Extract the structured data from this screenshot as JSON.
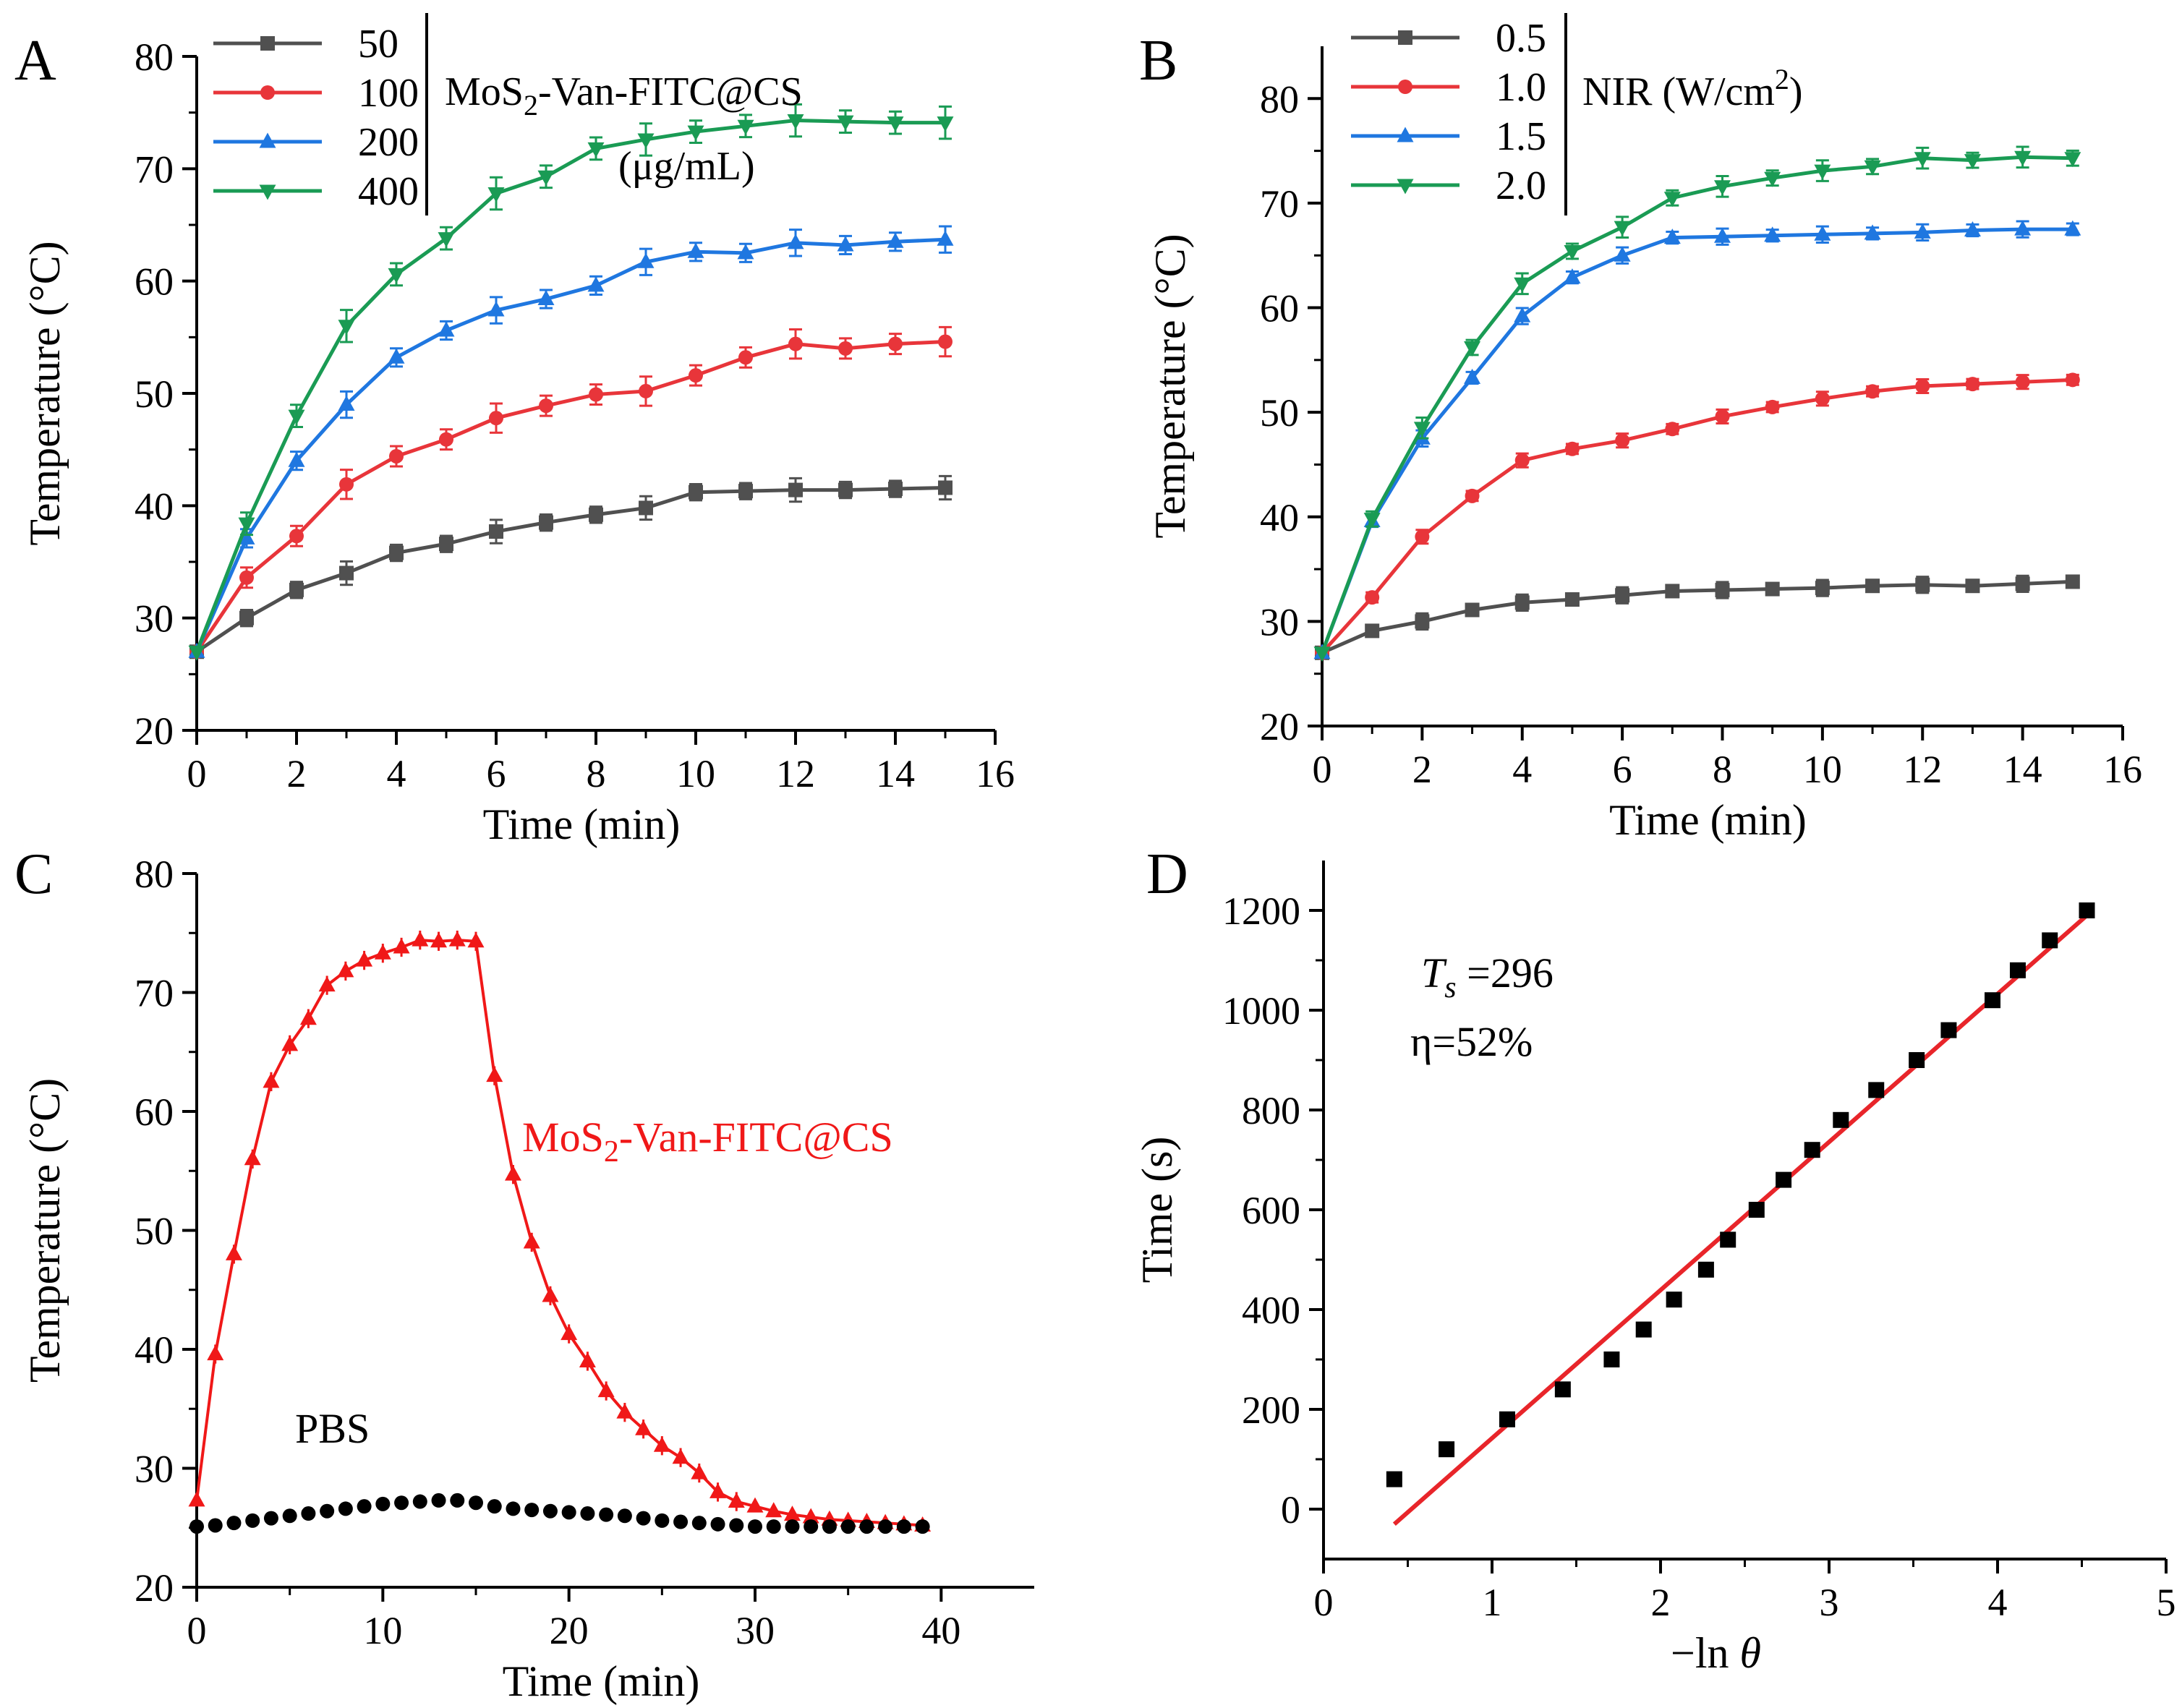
{
  "chart_data": [
    {
      "panel": "A",
      "type": "line",
      "xlabel": "Time (min)",
      "ylabel": "Temperature (°C)",
      "xlim": [
        0,
        16
      ],
      "ylim": [
        20,
        80
      ],
      "xticks": [
        0,
        2,
        4,
        6,
        8,
        10,
        12,
        14,
        16
      ],
      "yticks": [
        20,
        30,
        40,
        50,
        60,
        70,
        80
      ],
      "legend_title": "MoS2-Van-FITC@CS (μg/mL)",
      "legend_position": "top-left",
      "series": [
        {
          "name": "50",
          "color": "#505050",
          "marker": "square",
          "x": [
            0,
            1,
            2,
            3,
            4,
            5,
            6,
            7,
            8,
            9,
            10,
            11,
            12,
            13,
            14,
            15
          ],
          "y": [
            27,
            30,
            32.5,
            34,
            35.8,
            36.6,
            37.7,
            38.5,
            39.2,
            39.8,
            41.2,
            41.3,
            41.4,
            41.4,
            41.5,
            41.6
          ]
        },
        {
          "name": "100",
          "color": "#e8353a",
          "marker": "circle",
          "x": [
            0,
            1,
            2,
            3,
            4,
            5,
            6,
            7,
            8,
            9,
            10,
            11,
            12,
            13,
            14,
            15
          ],
          "y": [
            27,
            33.6,
            37.3,
            41.9,
            44.4,
            45.9,
            47.8,
            48.9,
            49.9,
            50.2,
            51.6,
            53.2,
            54.4,
            54.0,
            54.4,
            54.6
          ]
        },
        {
          "name": "200",
          "color": "#1f77e0",
          "marker": "triangle-up",
          "x": [
            0,
            1,
            2,
            3,
            4,
            5,
            6,
            7,
            8,
            9,
            10,
            11,
            12,
            13,
            14,
            15
          ],
          "y": [
            27,
            37.1,
            44.0,
            49.0,
            53.2,
            55.6,
            57.4,
            58.4,
            59.6,
            61.7,
            62.6,
            62.5,
            63.4,
            63.2,
            63.5,
            63.7
          ]
        },
        {
          "name": "400",
          "color": "#1a9b54",
          "marker": "triangle-down",
          "x": [
            0,
            1,
            2,
            3,
            4,
            5,
            6,
            7,
            8,
            9,
            10,
            11,
            12,
            13,
            14,
            15
          ],
          "y": [
            27,
            38.4,
            48.0,
            56.0,
            60.6,
            63.8,
            67.8,
            69.3,
            71.8,
            72.6,
            73.3,
            73.8,
            74.3,
            74.2,
            74.1,
            74.1
          ]
        }
      ]
    },
    {
      "panel": "B",
      "type": "line",
      "xlabel": "Time (min)",
      "ylabel": "Temperature (°C)",
      "xlim": [
        0,
        16
      ],
      "ylim": [
        20,
        85
      ],
      "xticks": [
        0,
        2,
        4,
        6,
        8,
        10,
        12,
        14,
        16
      ],
      "yticks": [
        20,
        30,
        40,
        50,
        60,
        70,
        80
      ],
      "legend_title": "NIR (W/cm²)",
      "legend_position": "top-left",
      "series": [
        {
          "name": "0.5",
          "color": "#505050",
          "marker": "square",
          "x": [
            0,
            1,
            2,
            3,
            4,
            5,
            6,
            7,
            8,
            9,
            10,
            11,
            12,
            13,
            14,
            15
          ],
          "y": [
            27,
            29.1,
            30.0,
            31.1,
            31.8,
            32.1,
            32.5,
            32.9,
            33.0,
            33.1,
            33.2,
            33.4,
            33.5,
            33.4,
            33.6,
            33.8
          ]
        },
        {
          "name": "1.0",
          "color": "#e8353a",
          "marker": "circle",
          "x": [
            0,
            1,
            2,
            3,
            4,
            5,
            6,
            7,
            8,
            9,
            10,
            11,
            12,
            13,
            14,
            15
          ],
          "y": [
            27,
            32.3,
            38.1,
            42.0,
            45.4,
            46.5,
            47.3,
            48.4,
            49.6,
            50.5,
            51.3,
            52.0,
            52.5,
            52.7,
            52.9,
            53.1
          ]
        },
        {
          "name": "1.5",
          "color": "#1f77e0",
          "marker": "triangle-up",
          "x": [
            0,
            1,
            2,
            3,
            4,
            5,
            6,
            7,
            8,
            9,
            10,
            11,
            12,
            13,
            14,
            15
          ],
          "y": [
            27,
            39.6,
            47.5,
            53.3,
            59.2,
            62.9,
            65.0,
            66.7,
            66.8,
            66.9,
            67.0,
            67.1,
            67.2,
            67.4,
            67.5,
            67.5
          ]
        },
        {
          "name": "2.0",
          "color": "#1a9b54",
          "marker": "triangle-down",
          "x": [
            0,
            1,
            2,
            3,
            4,
            5,
            6,
            7,
            8,
            9,
            10,
            11,
            12,
            13,
            14,
            15
          ],
          "y": [
            27,
            39.8,
            48.5,
            56.2,
            62.3,
            65.4,
            67.7,
            70.5,
            71.6,
            72.4,
            73.1,
            73.5,
            74.3,
            74.1,
            74.4,
            74.3
          ]
        }
      ]
    },
    {
      "panel": "C",
      "type": "line",
      "xlabel": "Time (min)",
      "ylabel": "Temperature (°C)",
      "xlim": [
        0,
        45
      ],
      "ylim": [
        20,
        80
      ],
      "xticks": [
        0,
        10,
        20,
        30,
        40
      ],
      "yticks": [
        20,
        30,
        40,
        50,
        60,
        70,
        80
      ],
      "series": [
        {
          "name": "MoS2-Van-FITC@CS",
          "color": "#f01818",
          "marker": "triangle-up",
          "x": [
            0,
            1,
            2,
            3,
            4,
            5,
            6,
            7,
            8,
            9,
            10,
            11,
            12,
            13,
            14,
            15,
            16,
            17,
            18,
            19,
            20,
            21,
            22,
            23,
            24,
            25,
            26,
            27,
            28,
            29,
            30,
            31,
            32,
            33,
            34,
            35,
            36,
            37,
            38,
            39
          ],
          "y": [
            27.3,
            39.6,
            48.0,
            56.0,
            62.5,
            65.6,
            67.8,
            70.6,
            71.8,
            72.7,
            73.3,
            73.8,
            74.4,
            74.3,
            74.4,
            74.3,
            63.0,
            54.7,
            49.0,
            44.5,
            41.3,
            39.0,
            36.5,
            34.7,
            33.3,
            31.9,
            30.9,
            29.6,
            28.0,
            27.2,
            26.8,
            26.4,
            26.1,
            25.9,
            25.7,
            25.6,
            25.5,
            25.4,
            25.3,
            25.2
          ]
        },
        {
          "name": "PBS",
          "color": "#000000",
          "marker": "circle",
          "x": [
            0,
            1,
            2,
            3,
            4,
            5,
            6,
            7,
            8,
            9,
            10,
            11,
            12,
            13,
            14,
            15,
            16,
            17,
            18,
            19,
            20,
            21,
            22,
            23,
            24,
            25,
            26,
            27,
            28,
            29,
            30,
            31,
            32,
            33,
            34,
            35,
            36,
            37,
            38,
            39
          ],
          "y": [
            25.1,
            25.2,
            25.4,
            25.6,
            25.8,
            26.0,
            26.2,
            26.4,
            26.6,
            26.8,
            27.0,
            27.1,
            27.2,
            27.3,
            27.3,
            27.1,
            26.8,
            26.6,
            26.5,
            26.4,
            26.3,
            26.2,
            26.1,
            26.0,
            25.8,
            25.6,
            25.5,
            25.4,
            25.3,
            25.2,
            25.1,
            25.1,
            25.1,
            25.1,
            25.1,
            25.1,
            25.1,
            25.1,
            25.1,
            25.1
          ]
        }
      ],
      "annotations": [
        "MoS2-Van-FITC@CS",
        "PBS"
      ]
    },
    {
      "panel": "D",
      "type": "scatter",
      "xlabel": "−ln θ",
      "ylabel": "Time (s)",
      "xlim": [
        0,
        5
      ],
      "ylim": [
        -100,
        1300
      ],
      "xticks": [
        0,
        1,
        2,
        3,
        4,
        5
      ],
      "yticks": [
        0,
        200,
        400,
        600,
        800,
        1000,
        1200
      ],
      "points": {
        "x": [
          0.42,
          0.73,
          1.09,
          1.42,
          1.71,
          1.9,
          2.08,
          2.27,
          2.4,
          2.57,
          2.73,
          2.9,
          3.07,
          3.28,
          3.52,
          3.71,
          3.97,
          4.12,
          4.31,
          4.53
        ],
        "y": [
          60,
          120,
          180,
          240,
          300,
          360,
          420,
          480,
          540,
          600,
          660,
          720,
          780,
          840,
          900,
          960,
          1020,
          1080,
          1140,
          1200
        ]
      },
      "fit": {
        "color": "#e8252a",
        "x": [
          0.42,
          4.53
        ],
        "y": [
          -30,
          1190
        ]
      },
      "annotations": [
        "T_s =296",
        "η=52%"
      ]
    }
  ],
  "panels": {
    "A": {
      "letter": "A",
      "legend_labels": [
        "50",
        "100",
        "200",
        "400"
      ],
      "legend_title_parts": {
        "pre": "MoS",
        "sub": "2",
        "post": "-Van-FITC@CS"
      },
      "legend_unit": "(μg/mL)"
    },
    "B": {
      "letter": "B",
      "legend_labels": [
        "0.5",
        "1.0",
        "1.5",
        "2.0"
      ],
      "legend_title_parts": {
        "pre": "NIR (W/cm",
        "sup": "2",
        "post": ")"
      }
    },
    "C": {
      "letter": "C",
      "label_mos2": {
        "pre": "MoS",
        "sub": "2",
        "post": "-Van-FITC@CS"
      },
      "label_pbs": "PBS"
    },
    "D": {
      "letter": "D",
      "ts_symbol": "T",
      "ts_sub": "s",
      "ts_value": " =296",
      "eta": "η=52%",
      "xlabel_pre": "−ln ",
      "xlabel_theta": "θ"
    }
  }
}
